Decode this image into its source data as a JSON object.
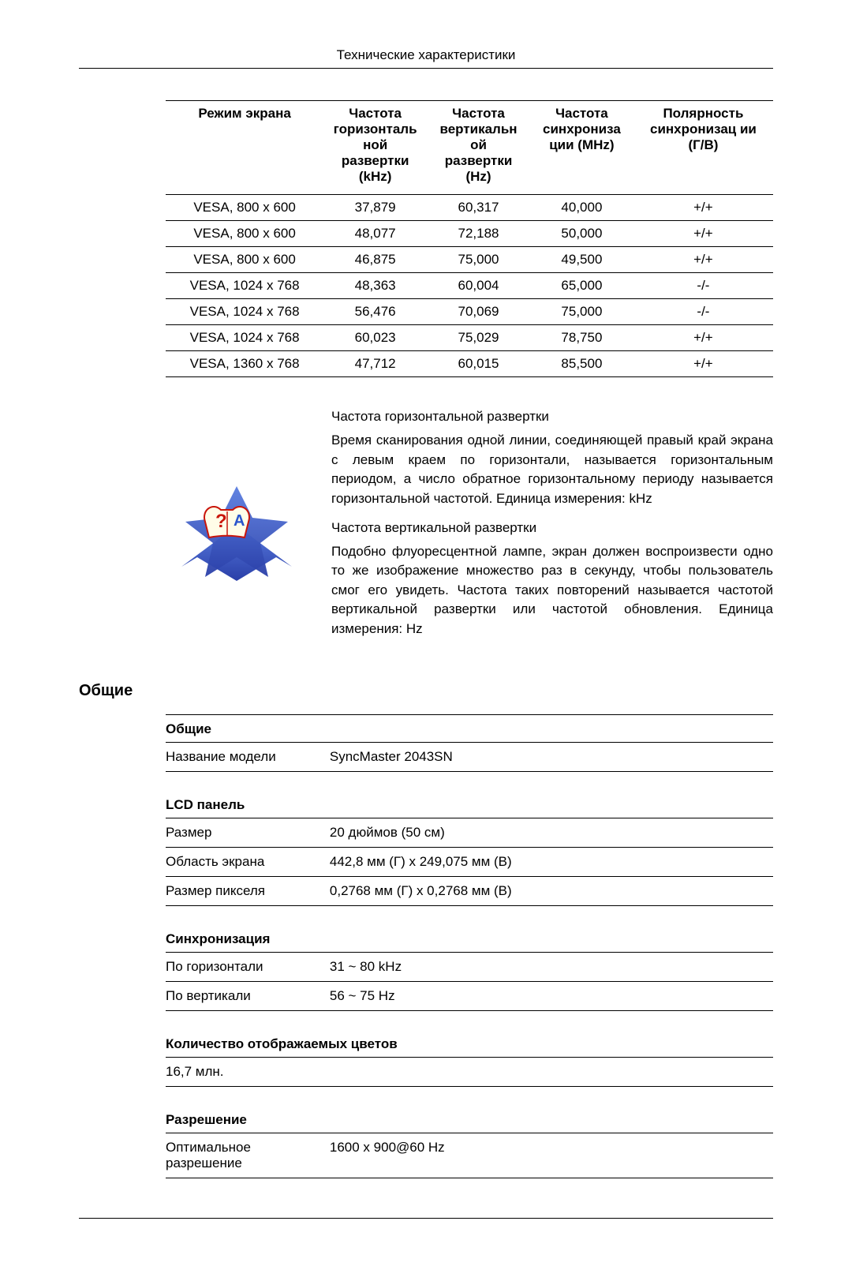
{
  "page_header": "Технические характеристики",
  "timing_table": {
    "headers": [
      "Режим экрана",
      "Частота горизонталь ной развертки (kHz)",
      "Частота вертикальн ой развертки (Hz)",
      "Частота синхрониза ции (MHz)",
      "Полярность синхронизац ии (Г/В)"
    ],
    "rows": [
      [
        "VESA, 800 x 600",
        "37,879",
        "60,317",
        "40,000",
        "+/+"
      ],
      [
        "VESA, 800 x 600",
        "48,077",
        "72,188",
        "50,000",
        "+/+"
      ],
      [
        "VESA, 800 x 600",
        "46,875",
        "75,000",
        "49,500",
        "+/+"
      ],
      [
        "VESA, 1024 x 768",
        "48,363",
        "60,004",
        "65,000",
        "-/-"
      ],
      [
        "VESA, 1024 x 768",
        "56,476",
        "70,069",
        "75,000",
        "-/-"
      ],
      [
        "VESA, 1024 x 768",
        "60,023",
        "75,029",
        "78,750",
        "+/+"
      ],
      [
        "VESA, 1360 x 768",
        "47,712",
        "60,015",
        "85,500",
        "+/+"
      ]
    ]
  },
  "illustration": {
    "colors": {
      "star_top": "#5a7de0",
      "star_bottom": "#2a3fa8",
      "book_page": "#fffde8",
      "book_accent": "#c9150a",
      "question": "#c9150a",
      "a_mark": "#2a55cc"
    }
  },
  "definitions": {
    "horiz_title": "Частота горизонтальной развертки",
    "horiz_body": "Время сканирования одной линии, соединяющей правый край экрана с левым краем по горизонтали, называется горизонтальным периодом, а число обратное горизонтальному периоду называется горизонтальной частотой. Единица измерения: kHz",
    "vert_title": "Частота вертикальной развертки",
    "vert_body": "Подобно флуоресцентной лампе, экран должен воспроизвести одно то же изображение множество раз в секунду, чтобы пользователь смог его увидеть. Частота таких повторений называется частотой вертикальной развертки или частотой обновления. Единица измерения: Hz"
  },
  "specs_heading": "Общие",
  "spec_groups": {
    "general": {
      "title": "Общие",
      "rows": [
        [
          "Название модели",
          "SyncMaster 2043SN"
        ]
      ]
    },
    "lcd": {
      "title": "LCD панель",
      "rows": [
        [
          "Размер",
          "20 дюймов (50 см)"
        ],
        [
          "Область экрана",
          "442,8 мм (Г) x 249,075 мм (В)"
        ],
        [
          "Размер пикселя",
          "0,2768 мм (Г) x 0,2768 мм (В)"
        ]
      ]
    },
    "sync": {
      "title": "Синхронизация",
      "rows": [
        [
          "По горизонтали",
          "31 ~ 80 kHz"
        ],
        [
          "По вертикали",
          "56 ~ 75 Hz"
        ]
      ]
    },
    "colors": {
      "title": "Количество отображаемых цветов",
      "value": "16,7 млн."
    },
    "resolution": {
      "title": "Разрешение",
      "rows": [
        [
          "Оптимальное разрешение",
          "1600 x 900@60 Hz"
        ]
      ]
    }
  }
}
